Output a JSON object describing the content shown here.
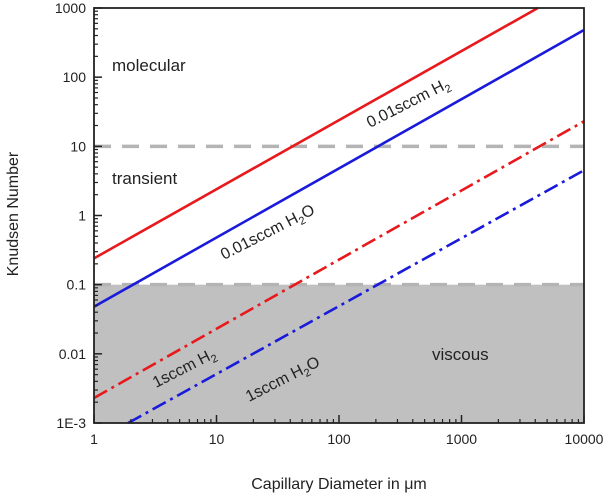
{
  "chart_data": {
    "type": "line",
    "xlabel": "Capillary Diameter in μm",
    "ylabel": "Knudsen Number",
    "xscale": "log",
    "yscale": "log",
    "xlim": [
      1,
      10000
    ],
    "ylim": [
      0.001,
      1000
    ],
    "xticks": [
      "1",
      "10",
      "100",
      "1000",
      "10000"
    ],
    "yticks": [
      "1E-3",
      "0.01",
      "0.1",
      "1",
      "10",
      "100",
      "1000"
    ],
    "grid": false,
    "series": [
      {
        "x": [
          1,
          4200
        ],
        "y": [
          0.24,
          1000
        ],
        "color": "#e8191c",
        "style": "solid"
      },
      {
        "x": [
          1,
          10000
        ],
        "y": [
          0.048,
          480
        ],
        "color": "#1a1adb",
        "style": "solid"
      },
      {
        "x": [
          1,
          10000
        ],
        "y": [
          0.0023,
          23
        ],
        "color": "#e8191c",
        "style": "dash-dot"
      },
      {
        "x": [
          1.9,
          10000
        ],
        "y": [
          0.001,
          4.5
        ],
        "color": "#1a1adb",
        "style": "dash-dot"
      }
    ],
    "series_labels": [
      {
        "main": "0.01sccm H",
        "sub": "2",
        "tail": ""
      },
      {
        "main": "0.01sccm H",
        "sub": "2",
        "tail": "O"
      },
      {
        "main": "1sccm H",
        "sub": "2",
        "tail": ""
      },
      {
        "main": "1sccm H",
        "sub": "2",
        "tail": "O"
      }
    ],
    "thresholds": [
      10,
      0.1
    ],
    "regions": {
      "upper": "molecular",
      "middle": "transient",
      "lower": "viscous"
    },
    "viscous_fill": "#c0c0c0",
    "threshold_color": "#b4b4b4"
  }
}
